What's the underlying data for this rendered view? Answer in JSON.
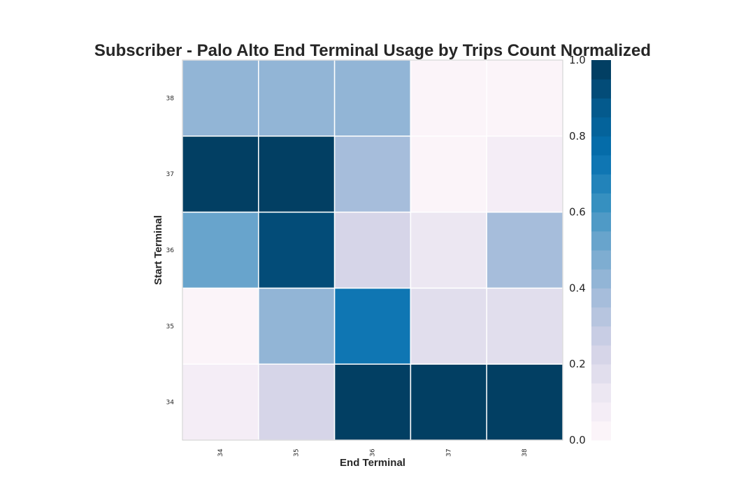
{
  "chart_data": {
    "type": "heatmap",
    "title": "Subscriber - Palo Alto End Terminal Usage by Trips Count Normalized",
    "xlabel": "End Terminal",
    "ylabel": "Start Terminal",
    "x_categories": [
      "34",
      "35",
      "36",
      "37",
      "38"
    ],
    "y_categories": [
      "34",
      "35",
      "36",
      "37",
      "38"
    ],
    "values": [
      [
        0.05,
        0.2,
        1.0,
        1.0,
        1.0
      ],
      [
        0.0,
        0.44,
        0.72,
        0.19,
        0.15
      ],
      [
        0.54,
        0.9,
        0.2,
        0.1,
        0.35
      ],
      [
        1.0,
        1.0,
        0.35,
        0.0,
        0.05
      ],
      [
        0.43,
        0.43,
        0.43,
        0.0,
        0.0
      ]
    ],
    "colorbar": {
      "range": [
        0.0,
        1.0
      ],
      "ticks": [
        "0.0",
        "0.2",
        "0.4",
        "0.6",
        "0.8",
        "1.0"
      ],
      "colormap": "PuBu",
      "levels": 20
    },
    "grid": false,
    "colors": {
      "low": "#fff7fb",
      "high": "#034569",
      "cell_border": "#ffffff"
    }
  }
}
